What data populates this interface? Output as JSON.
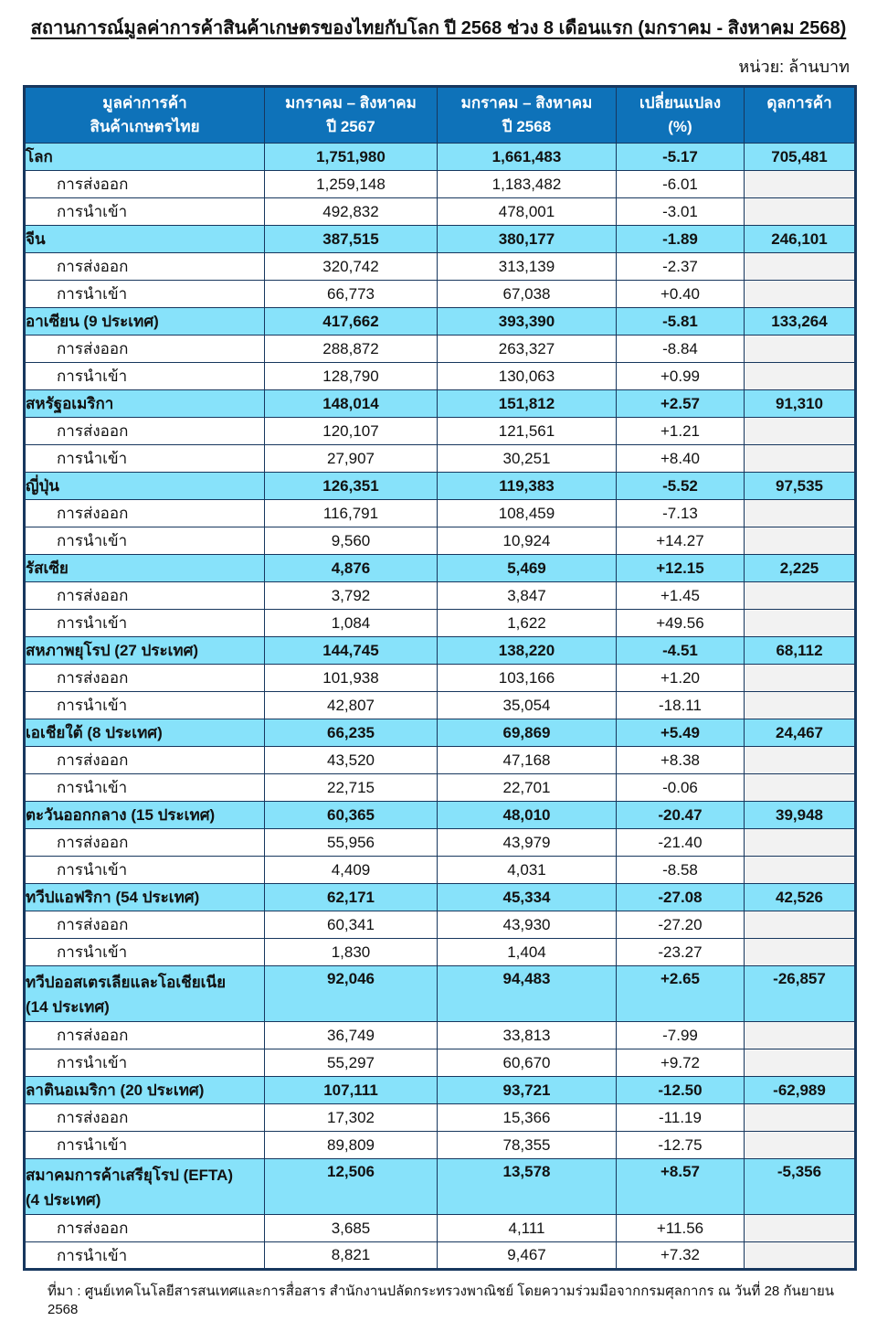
{
  "page": {
    "title": "สถานการณ์มูลค่าการค้าสินค้าเกษตรของไทยกับโลก ปี 2568 ช่วง 8 เดือนแรก (มกราคม - สิงหาคม 2568)",
    "unit_label": "หน่วย: ล้านบาท",
    "source_note": "ที่มา : ศูนย์เทคโนโลยีสารสนเทศและการสื่อสาร สำนักงานปลัดกระทรวงพาณิชย์ โดยความร่วมมือจากกรมศุลกากร ณ วันที่ 28 กันยายน 2568"
  },
  "colors": {
    "header_bg": "#0e72b9",
    "header_text": "#ffffff",
    "region_row_bg": "#87e2fa",
    "subrow_balance_bg": "#f2f2f2",
    "table_border": "#17375e"
  },
  "table": {
    "headers": [
      {
        "line1": "มูลค่าการค้า",
        "line2": "สินค้าเกษตรไทย"
      },
      {
        "line1": "มกราคม – สิงหาคม",
        "line2": "ปี 2567"
      },
      {
        "line1": "มกราคม – สิงหาคม",
        "line2": "ปี 2568"
      },
      {
        "line1": "เปลี่ยนแปลง",
        "line2": "(%)"
      },
      {
        "line1": "ดุลการค้า",
        "line2": ""
      }
    ],
    "row_labels": {
      "export": "การส่งออก",
      "import": "การนำเข้า"
    },
    "groups": [
      {
        "region": "โลก",
        "region2": "",
        "total": [
          "1,751,980",
          "1,661,483",
          "-5.17",
          "705,481"
        ],
        "exp": [
          "1,259,148",
          "1,183,482",
          "-6.01"
        ],
        "imp": [
          "492,832",
          "478,001",
          "-3.01"
        ]
      },
      {
        "region": "จีน",
        "region2": "",
        "total": [
          "387,515",
          "380,177",
          "-1.89",
          "246,101"
        ],
        "exp": [
          "320,742",
          "313,139",
          "-2.37"
        ],
        "imp": [
          "66,773",
          "67,038",
          "+0.40"
        ]
      },
      {
        "region": "อาเซียน (9 ประเทศ)",
        "region2": "",
        "total": [
          "417,662",
          "393,390",
          "-5.81",
          "133,264"
        ],
        "exp": [
          "288,872",
          "263,327",
          "-8.84"
        ],
        "imp": [
          "128,790",
          "130,063",
          "+0.99"
        ]
      },
      {
        "region": "สหรัฐอเมริกา",
        "region2": "",
        "total": [
          "148,014",
          "151,812",
          "+2.57",
          "91,310"
        ],
        "exp": [
          "120,107",
          "121,561",
          "+1.21"
        ],
        "imp": [
          "27,907",
          "30,251",
          "+8.40"
        ]
      },
      {
        "region": "ญี่ปุ่น",
        "region2": "",
        "total": [
          "126,351",
          "119,383",
          "-5.52",
          "97,535"
        ],
        "exp": [
          "116,791",
          "108,459",
          "-7.13"
        ],
        "imp": [
          "9,560",
          "10,924",
          "+14.27"
        ]
      },
      {
        "region": "รัสเซีย",
        "region2": "",
        "total": [
          "4,876",
          "5,469",
          "+12.15",
          "2,225"
        ],
        "exp": [
          "3,792",
          "3,847",
          "+1.45"
        ],
        "imp": [
          "1,084",
          "1,622",
          "+49.56"
        ]
      },
      {
        "region": "สหภาพยุโรป (27 ประเทศ)",
        "region2": "",
        "total": [
          "144,745",
          "138,220",
          "-4.51",
          "68,112"
        ],
        "exp": [
          "101,938",
          "103,166",
          "+1.20"
        ],
        "imp": [
          "42,807",
          "35,054",
          "-18.11"
        ]
      },
      {
        "region": "เอเชียใต้ (8 ประเทศ)",
        "region2": "",
        "total": [
          "66,235",
          "69,869",
          "+5.49",
          "24,467"
        ],
        "exp": [
          "43,520",
          "47,168",
          "+8.38"
        ],
        "imp": [
          "22,715",
          "22,701",
          "-0.06"
        ]
      },
      {
        "region": "ตะวันออกกลาง (15 ประเทศ)",
        "region2": "",
        "total": [
          "60,365",
          "48,010",
          "-20.47",
          "39,948"
        ],
        "exp": [
          "55,956",
          "43,979",
          "-21.40"
        ],
        "imp": [
          "4,409",
          "4,031",
          "-8.58"
        ]
      },
      {
        "region": "ทวีปแอฟริกา (54 ประเทศ)",
        "region2": "",
        "total": [
          "62,171",
          "45,334",
          "-27.08",
          "42,526"
        ],
        "exp": [
          "60,341",
          "43,930",
          "-27.20"
        ],
        "imp": [
          "1,830",
          "1,404",
          "-23.27"
        ]
      },
      {
        "region": "ทวีปออสเตรเลียและโอเชียเนีย",
        "region2": "(14 ประเทศ)",
        "total": [
          "92,046",
          "94,483",
          "+2.65",
          "-26,857"
        ],
        "exp": [
          "36,749",
          "33,813",
          "-7.99"
        ],
        "imp": [
          "55,297",
          "60,670",
          "+9.72"
        ]
      },
      {
        "region": "ลาตินอเมริกา (20 ประเทศ)",
        "region2": "",
        "total": [
          "107,111",
          "93,721",
          "-12.50",
          "-62,989"
        ],
        "exp": [
          "17,302",
          "15,366",
          "-11.19"
        ],
        "imp": [
          "89,809",
          "78,355",
          "-12.75"
        ]
      },
      {
        "region": "สมาคมการค้าเสรียุโรป (EFTA)",
        "region2": "(4 ประเทศ)",
        "total": [
          "12,506",
          "13,578",
          "+8.57",
          "-5,356"
        ],
        "exp": [
          "3,685",
          "4,111",
          "+11.56"
        ],
        "imp": [
          "8,821",
          "9,467",
          "+7.32"
        ]
      }
    ]
  }
}
